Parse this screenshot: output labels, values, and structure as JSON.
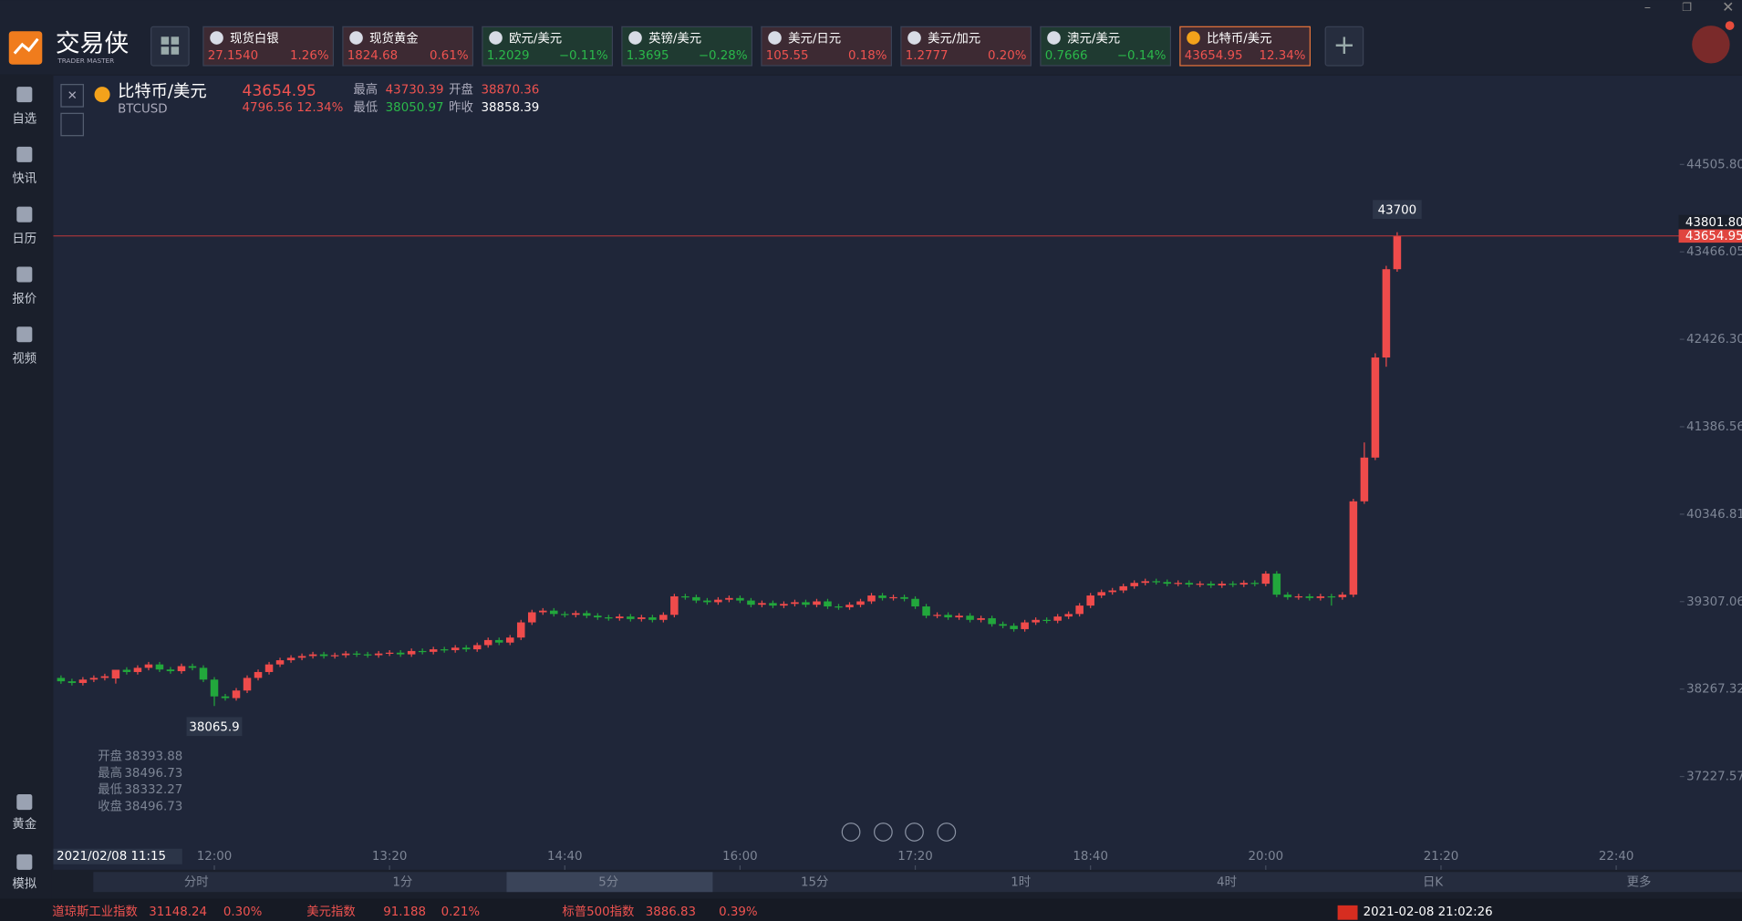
{
  "app": {
    "logo": "交易侠",
    "logo_sub": "TRADER MASTER"
  },
  "tickers": [
    {
      "name": "现货白银",
      "price": "27.1540",
      "change": "1.26%",
      "trend": "up"
    },
    {
      "name": "现货黄金",
      "price": "1824.68",
      "change": "0.61%",
      "trend": "up"
    },
    {
      "name": "欧元/美元",
      "price": "1.2029",
      "change": "−0.11%",
      "trend": "down"
    },
    {
      "name": "英镑/美元",
      "price": "1.3695",
      "change": "−0.28%",
      "trend": "down"
    },
    {
      "name": "美元/日元",
      "price": "105.55",
      "change": "0.18%",
      "trend": "up"
    },
    {
      "name": "美元/加元",
      "price": "1.2777",
      "change": "0.20%",
      "trend": "up"
    },
    {
      "name": "澳元/美元",
      "price": "0.7666",
      "change": "−0.14%",
      "trend": "down"
    },
    {
      "name": "比特币/美元",
      "price": "43654.95",
      "change": "12.34%",
      "trend": "up"
    }
  ],
  "sidebar": {
    "top": [
      "自选",
      "快讯",
      "日历",
      "报价",
      "视频"
    ],
    "bottom": [
      "黄金",
      "模拟"
    ]
  },
  "quote": {
    "symbol": "比特币/美元",
    "code": "BTCUSD",
    "price": "43654.95",
    "change": "4796.56",
    "change_pct": "12.34%",
    "high_label": "最高",
    "high": "43730.39",
    "open_label": "开盘",
    "open": "38870.36",
    "low_label": "最低",
    "low": "38050.97",
    "prev_label": "昨收",
    "prev": "38858.39"
  },
  "crosshair": {
    "time": "2021/02/08 11:15",
    "price": "43801.80",
    "labels": [
      "开盘",
      "最高",
      "最低",
      "收盘"
    ]
  },
  "timeframes": {
    "items": [
      "分时",
      "1分",
      "5分",
      "15分",
      "1时",
      "4时",
      "日K",
      "更多"
    ],
    "active": 2
  },
  "ticker_bar": [
    {
      "name": "道琼斯工业指数",
      "value": "31148.24",
      "change": "0.30%"
    },
    {
      "name": "美元指数",
      "value": "91.188",
      "change": "0.21%"
    },
    {
      "name": "标普500指数",
      "value": "3886.83",
      "change": "0.39%"
    }
  ],
  "status_time": "2021-02-08 21:02:26",
  "chart_data": {
    "type": "candlestick",
    "up_color": "#ef4b4b",
    "down_color": "#22a73c",
    "xlim": [
      646.5,
      1388
    ],
    "ylim": [
      36118,
      45562
    ],
    "xticks": [
      {
        "value": 720,
        "label": "12:00"
      },
      {
        "value": 800,
        "label": "13:20"
      },
      {
        "value": 880,
        "label": "14:40"
      },
      {
        "value": 960,
        "label": "16:00"
      },
      {
        "value": 1040,
        "label": "17:20"
      },
      {
        "value": 1120,
        "label": "18:40"
      },
      {
        "value": 1200,
        "label": "20:00"
      },
      {
        "value": 1280,
        "label": "21:20"
      },
      {
        "value": 1360,
        "label": "22:40"
      }
    ],
    "yticks": [
      {
        "value": 44505.8,
        "label": "44505.80"
      },
      43466.05,
      {
        "value": 42426.3,
        "label": "42426.30"
      },
      41386.56,
      40346.81,
      39307.06,
      38267.32,
      37227.57
    ],
    "x": [
      650,
      655,
      660,
      665,
      670,
      675,
      680,
      685,
      690,
      695,
      700,
      705,
      710,
      715,
      720,
      725,
      730,
      735,
      740,
      745,
      750,
      755,
      760,
      765,
      770,
      775,
      780,
      785,
      790,
      795,
      800,
      805,
      810,
      815,
      820,
      825,
      830,
      835,
      840,
      845,
      850,
      855,
      860,
      865,
      870,
      875,
      880,
      885,
      890,
      895,
      900,
      905,
      910,
      915,
      920,
      925,
      930,
      935,
      940,
      945,
      950,
      955,
      960,
      965,
      970,
      975,
      980,
      985,
      990,
      995,
      1000,
      1005,
      1010,
      1015,
      1020,
      1025,
      1030,
      1035,
      1040,
      1045,
      1050,
      1055,
      1060,
      1065,
      1070,
      1075,
      1080,
      1085,
      1090,
      1095,
      1100,
      1105,
      1110,
      1115,
      1120,
      1125,
      1130,
      1135,
      1140,
      1145,
      1150,
      1155,
      1160,
      1165,
      1170,
      1175,
      1180,
      1185,
      1190,
      1195,
      1200,
      1205,
      1210,
      1215,
      1220,
      1225,
      1230,
      1235,
      1240,
      1245,
      1250,
      1255,
      1260
    ],
    "open": [
      38400,
      38360,
      38340,
      38380,
      38400,
      38393.88,
      38496.73,
      38470,
      38520,
      38560,
      38500,
      38480,
      38540,
      38520,
      38380,
      38180,
      38160,
      38250,
      38400,
      38470,
      38560,
      38610,
      38640,
      38660,
      38680,
      38660,
      38670,
      38690,
      38680,
      38670,
      38690,
      38700,
      38680,
      38720,
      38710,
      38740,
      38730,
      38760,
      38740,
      38790,
      38850,
      38820,
      38880,
      39060,
      39180,
      39200,
      39160,
      39150,
      39170,
      39140,
      39120,
      39110,
      39130,
      39100,
      39120,
      39090,
      39150,
      39370,
      39360,
      39320,
      39300,
      39330,
      39350,
      39320,
      39270,
      39290,
      39260,
      39280,
      39300,
      39270,
      39310,
      39250,
      39240,
      39270,
      39310,
      39380,
      39350,
      39360,
      39340,
      39250,
      39140,
      39150,
      39120,
      39140,
      39090,
      39110,
      39040,
      39020,
      38980,
      39060,
      39090,
      39080,
      39130,
      39160,
      39260,
      39380,
      39420,
      39440,
      39490,
      39530,
      39550,
      39540,
      39520,
      39530,
      39510,
      39520,
      39500,
      39520,
      39510,
      39530,
      39520,
      39640,
      39390,
      39360,
      39370,
      39350,
      39370,
      39360,
      39390,
      40500,
      41020,
      42210,
      43260
    ],
    "high": [
      38430,
      38390,
      38410,
      38430,
      38450,
      38496.73,
      38527,
      38550,
      38590,
      38590,
      38530,
      38570,
      38570,
      38550,
      38410,
      38210,
      38280,
      38430,
      38500,
      38590,
      38640,
      38670,
      38690,
      38710,
      38710,
      38700,
      38720,
      38720,
      38710,
      38720,
      38730,
      38730,
      38750,
      38750,
      38770,
      38770,
      38790,
      38790,
      38820,
      38880,
      38880,
      38910,
      39090,
      39210,
      39230,
      39230,
      39190,
      39200,
      39200,
      39170,
      39150,
      39160,
      39160,
      39150,
      39150,
      39180,
      39400,
      39400,
      39390,
      39350,
      39360,
      39380,
      39380,
      39350,
      39320,
      39320,
      39310,
      39330,
      39330,
      39340,
      39340,
      39280,
      39300,
      39340,
      39410,
      39410,
      39390,
      39390,
      39370,
      39280,
      39180,
      39180,
      39170,
      39170,
      39140,
      39140,
      39070,
      39050,
      39090,
      39120,
      39120,
      39160,
      39190,
      39290,
      39410,
      39450,
      39470,
      39520,
      39560,
      39580,
      39580,
      39570,
      39560,
      39560,
      39550,
      39550,
      39550,
      39550,
      39560,
      39560,
      39670,
      39670,
      39420,
      39400,
      39400,
      39400,
      39400,
      39420,
      40530,
      41200,
      42260,
      43300,
      43700
    ],
    "low": [
      38330,
      38310,
      38310,
      38350,
      38370,
      38332.27,
      38440,
      38440,
      38490,
      38470,
      38450,
      38450,
      38490,
      38350,
      38065.9,
      38130,
      38130,
      38220,
      38370,
      38440,
      38530,
      38580,
      38610,
      38630,
      38630,
      38630,
      38640,
      38650,
      38640,
      38640,
      38660,
      38650,
      38650,
      38680,
      38680,
      38700,
      38700,
      38710,
      38710,
      38760,
      38790,
      38790,
      38850,
      39030,
      39150,
      39130,
      39120,
      39120,
      39110,
      39090,
      39080,
      39080,
      39070,
      39070,
      39060,
      39060,
      39120,
      39330,
      39290,
      39270,
      39270,
      39300,
      39290,
      39240,
      39240,
      39230,
      39230,
      39250,
      39240,
      39240,
      39220,
      39210,
      39210,
      39240,
      39280,
      39320,
      39320,
      39310,
      39220,
      39110,
      39110,
      39090,
      39090,
      39060,
      39060,
      39010,
      38990,
      38950,
      38950,
      39030,
      39050,
      39050,
      39100,
      39130,
      39230,
      39350,
      39390,
      39410,
      39460,
      39500,
      39510,
      39490,
      39490,
      39480,
      39480,
      39470,
      39470,
      39480,
      39480,
      39490,
      39490,
      39360,
      39330,
      39330,
      39320,
      39320,
      39260,
      39330,
      39360,
      40470,
      40990,
      42100,
      43230
    ],
    "close": [
      38360,
      38340,
      38380,
      38400,
      38420,
      38496.73,
      38470,
      38520,
      38560,
      38500,
      38480,
      38540,
      38520,
      38380,
      38180,
      38160,
      38250,
      38400,
      38470,
      38560,
      38610,
      38640,
      38660,
      38680,
      38660,
      38670,
      38690,
      38680,
      38670,
      38690,
      38700,
      38680,
      38720,
      38710,
      38740,
      38730,
      38760,
      38740,
      38790,
      38850,
      38820,
      38880,
      39060,
      39180,
      39200,
      39160,
      39150,
      39170,
      39140,
      39120,
      39110,
      39130,
      39100,
      39120,
      39090,
      39150,
      39370,
      39360,
      39320,
      39300,
      39330,
      39350,
      39320,
      39270,
      39290,
      39260,
      39280,
      39300,
      39270,
      39310,
      39250,
      39240,
      39270,
      39310,
      39380,
      39350,
      39360,
      39340,
      39250,
      39140,
      39150,
      39120,
      39140,
      39090,
      39110,
      39040,
      39020,
      38980,
      39060,
      39090,
      39080,
      39130,
      39160,
      39260,
      39380,
      39420,
      39440,
      39490,
      39530,
      39550,
      39540,
      39520,
      39530,
      39510,
      39520,
      39500,
      39520,
      39510,
      39530,
      39520,
      39640,
      39390,
      39360,
      39370,
      39350,
      39370,
      39360,
      39390,
      40500,
      41020,
      42210,
      43260,
      43654.95
    ]
  }
}
